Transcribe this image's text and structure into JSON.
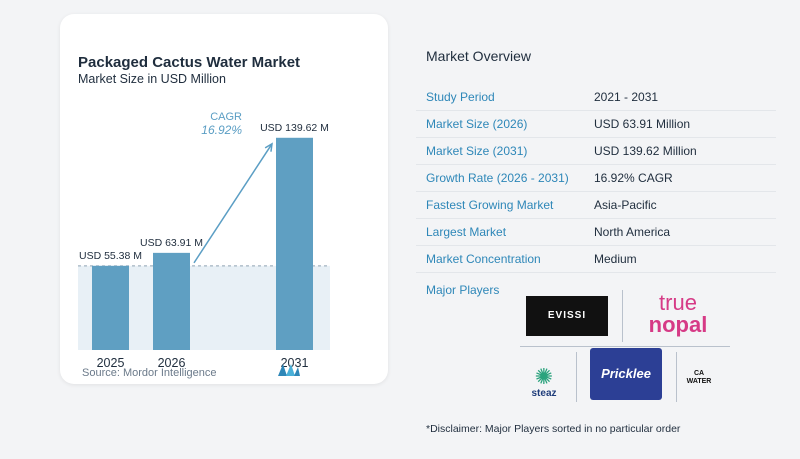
{
  "chart_data": {
    "type": "bar",
    "title": "Packaged Cactus Water Market",
    "subtitle": "Market Size in USD Million",
    "categories": [
      "2025",
      "2026",
      "2031"
    ],
    "values": [
      55.38,
      63.91,
      139.62
    ],
    "value_labels": [
      "USD 55.38 M",
      "USD 63.91 M",
      "USD 139.62 M"
    ],
    "cagr_label": "CAGR",
    "cagr_value": "16.92%",
    "xlabel": "",
    "ylabel": "",
    "ylim": [
      0,
      150
    ],
    "grid": false,
    "bar_color": "#5f9fc2",
    "reference_line": 55.38,
    "source": "Source:  Mordor Intelligence"
  },
  "overview": {
    "title": "Market Overview",
    "rows": [
      {
        "key": "Study Period",
        "value": "2021 - 2031"
      },
      {
        "key": "Market Size (2026)",
        "value": "USD 63.91 Million"
      },
      {
        "key": "Market Size (2031)",
        "value": "USD 139.62 Million"
      },
      {
        "key": "Growth Rate (2026 - 2031)",
        "value": "16.92% CAGR"
      },
      {
        "key": "Fastest Growing Market",
        "value": "Asia-Pacific"
      },
      {
        "key": "Largest Market",
        "value": "North America"
      },
      {
        "key": "Market Concentration",
        "value": "Medium"
      }
    ],
    "players_label": "Major Players",
    "players": {
      "evissi": "EVISSI",
      "true_word": "true",
      "nopal_word": "nopal",
      "steaz": "steaz",
      "pricklee": "Pricklee",
      "ca_water": "CA WATER"
    },
    "disclaimer": "*Disclaimer: Major Players sorted in no particular order"
  },
  "colors": {
    "accent": "#2e87b8",
    "bar": "#5f9fc2",
    "arrow": "#5b9ec4"
  }
}
